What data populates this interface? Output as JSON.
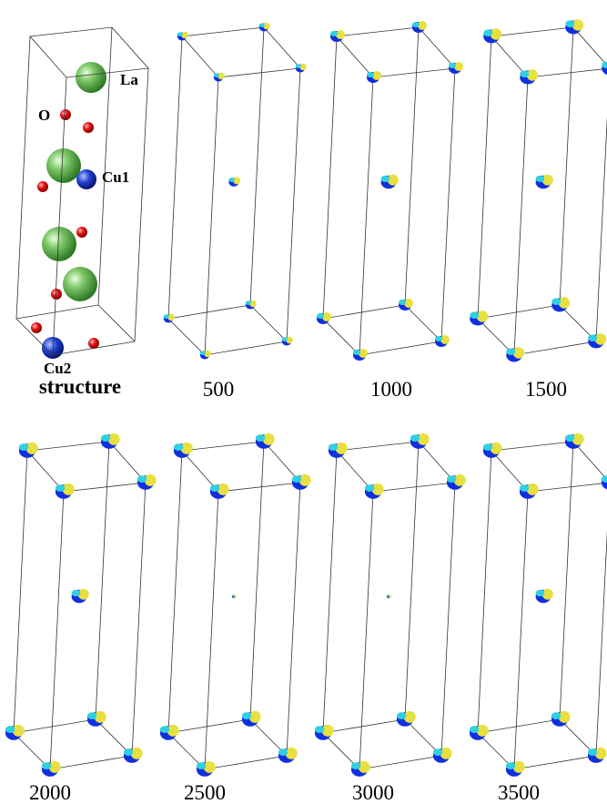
{
  "structure_labels": {
    "la": "La",
    "o": "O",
    "cu1": "Cu1",
    "cu2": "Cu2"
  },
  "panels": [
    {
      "caption": "structure"
    },
    {
      "caption": "500"
    },
    {
      "caption": "1000"
    },
    {
      "caption": "1500"
    },
    {
      "caption": "2000"
    },
    {
      "caption": "2500"
    },
    {
      "caption": "3000"
    },
    {
      "caption": "3500"
    }
  ]
}
